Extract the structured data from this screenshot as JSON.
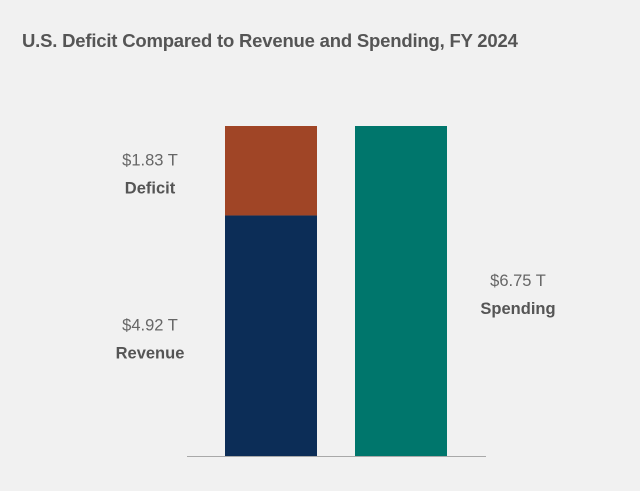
{
  "title": "U.S. Deficit Compared to Revenue and Spending, FY 2024",
  "chart_data": {
    "type": "bar",
    "stacked": true,
    "title": "U.S. Deficit Compared to Revenue and Spending, FY 2024",
    "categories": [
      "",
      ""
    ],
    "series": [
      {
        "name": "Revenue",
        "value_label": "$4.92 T",
        "color": "#0c2d57",
        "values": [
          4.92,
          0
        ]
      },
      {
        "name": "Deficit",
        "value_label": "$1.83 T",
        "color": "#a04526",
        "values": [
          1.83,
          0
        ]
      },
      {
        "name": "Spending",
        "value_label": "$6.75 T",
        "color": "#00766c",
        "values": [
          0,
          6.75
        ]
      }
    ],
    "unit": "T",
    "ylim": [
      0,
      6.75
    ],
    "grid": false,
    "legend": "none"
  }
}
